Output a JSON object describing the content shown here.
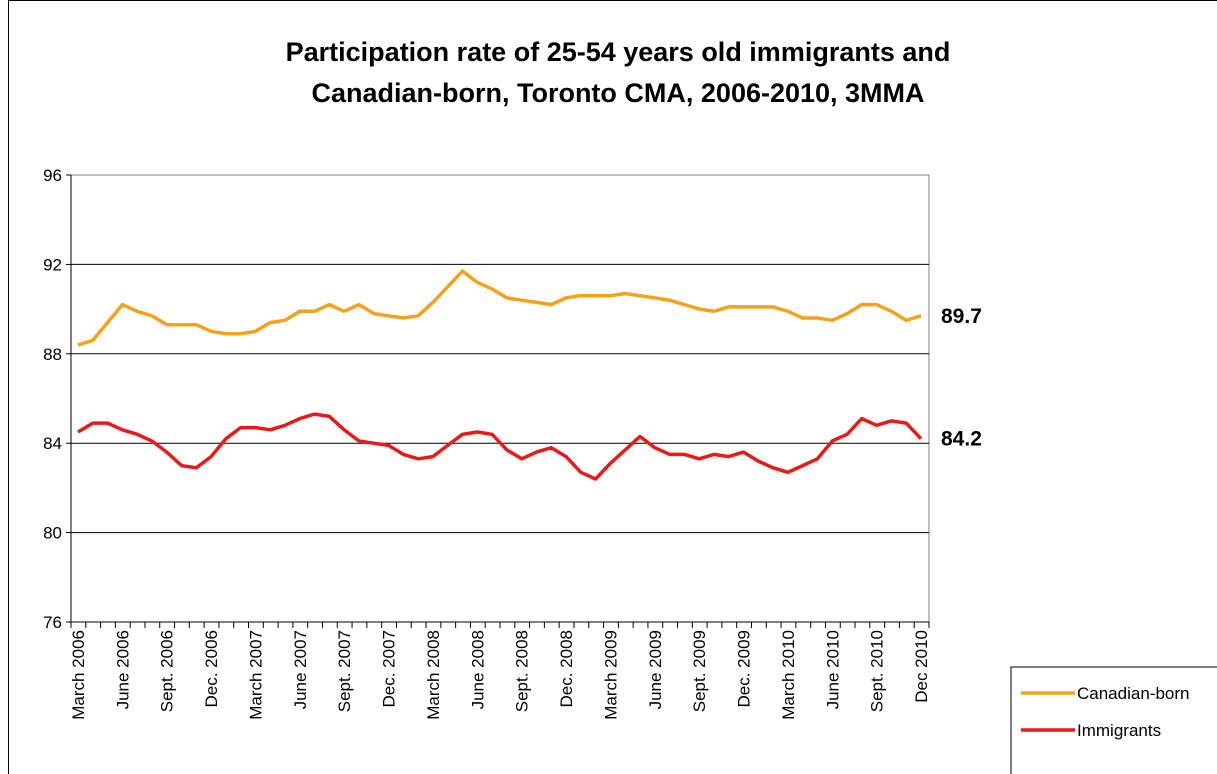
{
  "chart_data": {
    "type": "line",
    "title_lines": [
      "Participation rate of 25-54 years old immigrants and",
      "Canadian-born, Toronto CMA, 2006-2010, 3MMA"
    ],
    "xlabel": "",
    "ylabel": "",
    "ylim": [
      76,
      96
    ],
    "yticks": [
      76,
      80,
      84,
      88,
      92,
      96
    ],
    "grid": "horizontal",
    "legend_position": "bottom-right",
    "x_tick_labels": [
      "March 2006",
      "June 2006",
      "Sept. 2006",
      "Dec. 2006",
      "March 2007",
      "June 2007",
      "Sept. 2007",
      "Dec. 2007",
      "March 2008",
      "June 2008",
      "Sept. 2008",
      "Dec. 2008",
      "March 2009",
      "June 2009",
      "Sept. 2009",
      "Dec. 2009",
      "March 2010",
      "June 2010",
      "Sept. 2010",
      "Dec 2010"
    ],
    "series": [
      {
        "name": "Canadian-born",
        "color": "#F5A11C",
        "end_label": "89.7",
        "values": [
          88.4,
          88.6,
          89.4,
          90.2,
          89.9,
          89.7,
          89.3,
          89.3,
          89.3,
          89.0,
          88.9,
          88.9,
          89.0,
          89.4,
          89.5,
          89.9,
          89.9,
          90.2,
          89.9,
          90.2,
          89.8,
          89.7,
          89.6,
          89.7,
          90.3,
          91.0,
          91.7,
          91.2,
          90.9,
          90.5,
          90.4,
          90.3,
          90.2,
          90.5,
          90.6,
          90.6,
          90.6,
          90.7,
          90.6,
          90.5,
          90.4,
          90.2,
          90.0,
          89.9,
          90.1,
          90.1,
          90.1,
          90.1,
          89.9,
          89.6,
          89.6,
          89.5,
          89.8,
          90.2,
          90.2,
          89.9,
          89.5,
          89.7
        ]
      },
      {
        "name": "Immigrants",
        "color": "#E81A1A",
        "end_label": "84.2",
        "values": [
          84.5,
          84.9,
          84.9,
          84.6,
          84.4,
          84.1,
          83.6,
          83.0,
          82.9,
          83.4,
          84.2,
          84.7,
          84.7,
          84.6,
          84.8,
          85.1,
          85.3,
          85.2,
          84.6,
          84.1,
          84.0,
          83.9,
          83.5,
          83.3,
          83.4,
          83.9,
          84.4,
          84.5,
          84.4,
          83.7,
          83.3,
          83.6,
          83.8,
          83.4,
          82.7,
          82.4,
          83.1,
          83.7,
          84.3,
          83.8,
          83.5,
          83.5,
          83.3,
          83.5,
          83.4,
          83.6,
          83.2,
          82.9,
          82.7,
          83.0,
          83.3,
          84.1,
          84.4,
          85.1,
          84.8,
          85.0,
          84.9,
          84.2
        ]
      }
    ]
  }
}
